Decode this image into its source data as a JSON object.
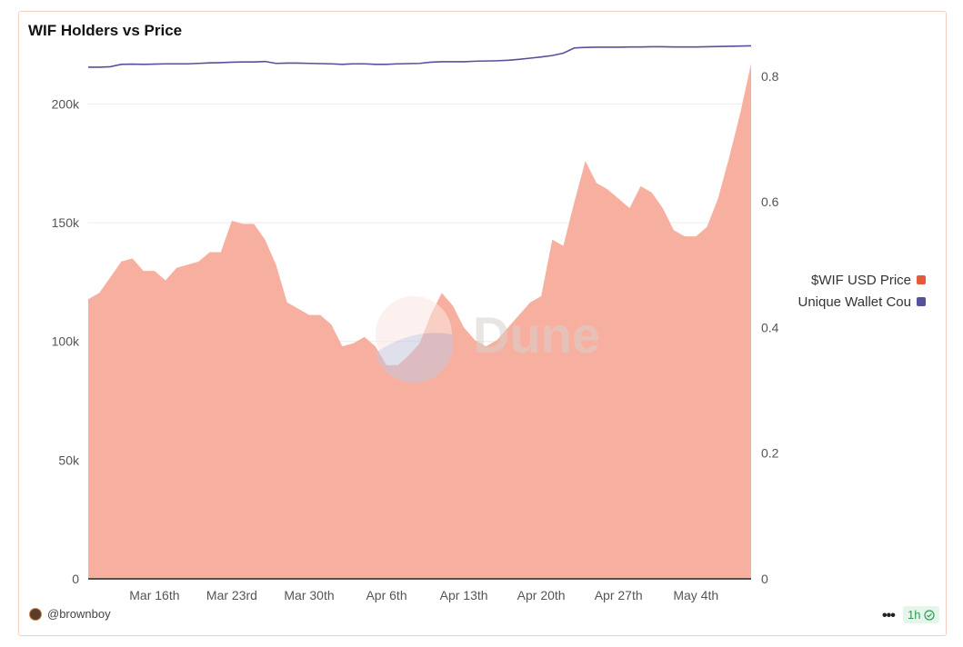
{
  "title": "WIF Holders vs Price",
  "legend": [
    {
      "label": "$WIF USD Price",
      "color": "#E45A3B"
    },
    {
      "label": "Unique Wallet Cou",
      "color": "#55519B"
    }
  ],
  "footer": {
    "author": "@brownboy",
    "more_label": "•••",
    "refresh_label": "1h"
  },
  "watermark": "Dune",
  "colors": {
    "price_fill": "#F7B0A0",
    "wallet_line": "#55519B",
    "grid": "#ececec",
    "baseline": "#222222"
  },
  "chart_data": {
    "type": "area",
    "x_tick_labels": [
      "Mar 16th",
      "Mar 23rd",
      "Mar 30th",
      "Apr 6th",
      "Apr 13th",
      "Apr 20th",
      "Apr 27th",
      "May 4th"
    ],
    "x_tick_days": [
      6,
      13,
      20,
      27,
      34,
      41,
      48,
      55
    ],
    "x_range_days": [
      0,
      60
    ],
    "x": [
      "Mar 10",
      "Mar 11",
      "Mar 12",
      "Mar 13",
      "Mar 14",
      "Mar 15",
      "Mar 16",
      "Mar 17",
      "Mar 18",
      "Mar 19",
      "Mar 20",
      "Mar 21",
      "Mar 22",
      "Mar 23",
      "Mar 24",
      "Mar 25",
      "Mar 26",
      "Mar 27",
      "Mar 28",
      "Mar 29",
      "Mar 30",
      "Mar 31",
      "Apr 1",
      "Apr 2",
      "Apr 3",
      "Apr 4",
      "Apr 5",
      "Apr 6",
      "Apr 7",
      "Apr 8",
      "Apr 9",
      "Apr 10",
      "Apr 11",
      "Apr 12",
      "Apr 13",
      "Apr 14",
      "Apr 15",
      "Apr 16",
      "Apr 17",
      "Apr 18",
      "Apr 19",
      "Apr 20",
      "Apr 21",
      "Apr 22",
      "Apr 23",
      "Apr 24",
      "Apr 25",
      "Apr 26",
      "Apr 27",
      "Apr 28",
      "Apr 29",
      "Apr 30",
      "May 1",
      "May 2",
      "May 3",
      "May 4",
      "May 5",
      "May 6",
      "May 7",
      "May 8",
      "May 9"
    ],
    "y_left": {
      "ticks": [
        "0",
        "50k",
        "100k",
        "150k",
        "200k"
      ],
      "tick_values": [
        0,
        50000,
        100000,
        150000,
        200000
      ],
      "range": [
        0,
        217000
      ]
    },
    "y_right": {
      "ticks": [
        "0",
        "0.2",
        "0.4",
        "0.6",
        "0.8"
      ],
      "tick_values": [
        0,
        0.2,
        0.4,
        0.6,
        0.8
      ],
      "range": [
        0,
        0.82
      ]
    },
    "series": [
      {
        "name": "$WIF USD Price",
        "kind": "area",
        "axis": "right",
        "values": [
          0.445,
          0.455,
          0.48,
          0.505,
          0.51,
          0.49,
          0.49,
          0.475,
          0.495,
          0.5,
          0.505,
          0.52,
          0.52,
          0.57,
          0.565,
          0.565,
          0.54,
          0.5,
          0.44,
          0.43,
          0.42,
          0.42,
          0.405,
          0.37,
          0.375,
          0.385,
          0.37,
          0.34,
          0.34,
          0.355,
          0.375,
          0.42,
          0.455,
          0.435,
          0.4,
          0.38,
          0.37,
          0.38,
          0.4,
          0.42,
          0.44,
          0.45,
          0.54,
          0.53,
          0.6,
          0.665,
          0.63,
          0.62,
          0.605,
          0.59,
          0.625,
          0.615,
          0.59,
          0.555,
          0.545,
          0.545,
          0.56,
          0.605,
          0.67,
          0.74,
          0.82
        ]
      },
      {
        "name": "Unique Wallet Cou",
        "kind": "line",
        "axis": "left",
        "values": [
          215500,
          215500,
          215700,
          216700,
          216800,
          216700,
          216800,
          216900,
          216900,
          216900,
          217100,
          217300,
          217400,
          217600,
          217700,
          217700,
          217900,
          217100,
          217200,
          217200,
          217100,
          217000,
          216900,
          216700,
          216900,
          216900,
          216700,
          216700,
          216900,
          217000,
          217100,
          217600,
          217800,
          217800,
          217800,
          218000,
          218100,
          218200,
          218400,
          218800,
          219300,
          219800,
          220400,
          221400,
          223600,
          223800,
          223900,
          223900,
          223900,
          224000,
          224000,
          224100,
          224100,
          224000,
          224000,
          224000,
          224100,
          224200,
          224300,
          224400,
          224500
        ]
      }
    ]
  }
}
